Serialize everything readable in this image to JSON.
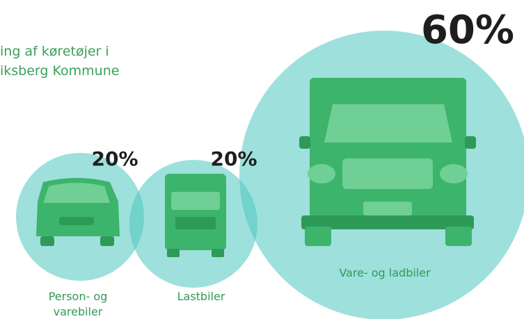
{
  "title": {
    "lines": [
      "ing af  køretøjer i",
      "iksberg Kommune"
    ]
  },
  "items": [
    {
      "percent": "20%",
      "label_lines": [
        "Person- og",
        "varebiler"
      ]
    },
    {
      "percent": "20%",
      "label_lines": [
        "Lastbiler"
      ]
    },
    {
      "percent": "60%",
      "label_lines": [
        "Vare- og ladbiler"
      ]
    }
  ]
}
